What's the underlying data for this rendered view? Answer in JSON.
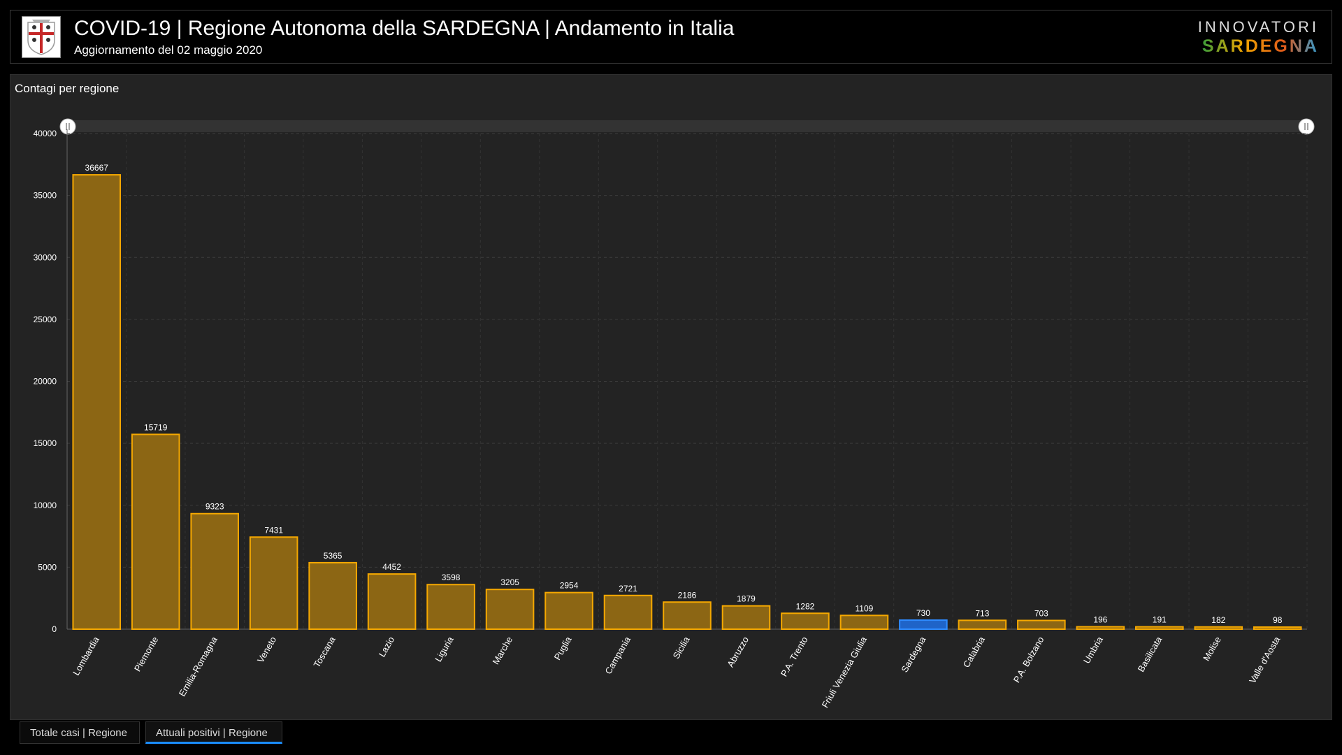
{
  "header": {
    "title": "COVID-19 | Regione Autonoma della SARDEGNA | Andamento in Italia",
    "subtitle": "Aggiornamento del 02 maggio 2020",
    "brand_top": "INNOVATORI",
    "brand_bottom": "SARDEGNA"
  },
  "panel": {
    "title": "Contagi per regione"
  },
  "tabs": [
    {
      "label": "Totale casi | Regione",
      "active": false
    },
    {
      "label": "Attuali positivi | Regione",
      "active": true
    }
  ],
  "colors": {
    "bar": "#8c6614",
    "bar_border": "#f5a800",
    "highlight": "#1f64c8",
    "highlight_border": "#2e8bff"
  },
  "chart_data": {
    "type": "bar",
    "categories": [
      "Lombardia",
      "Piemonte",
      "Emilia-Romagna",
      "Veneto",
      "Toscana",
      "Lazio",
      "Liguria",
      "Marche",
      "Puglia",
      "Campania",
      "Sicilia",
      "Abruzzo",
      "P.A. Trento",
      "Friuli Venezia Giulia",
      "Sardegna",
      "Calabria",
      "P.A. Bolzano",
      "Umbria",
      "Basilicata",
      "Molise",
      "Valle d'Aosta"
    ],
    "values": [
      36667,
      15719,
      9323,
      7431,
      5365,
      4452,
      3598,
      3205,
      2954,
      2721,
      2186,
      1879,
      1282,
      1109,
      730,
      713,
      703,
      196,
      191,
      182,
      98
    ],
    "highlight": "Sardegna",
    "ylim": [
      0,
      40000
    ],
    "yticks": [
      0,
      5000,
      10000,
      15000,
      20000,
      25000,
      30000,
      35000,
      40000
    ],
    "grid": true
  }
}
